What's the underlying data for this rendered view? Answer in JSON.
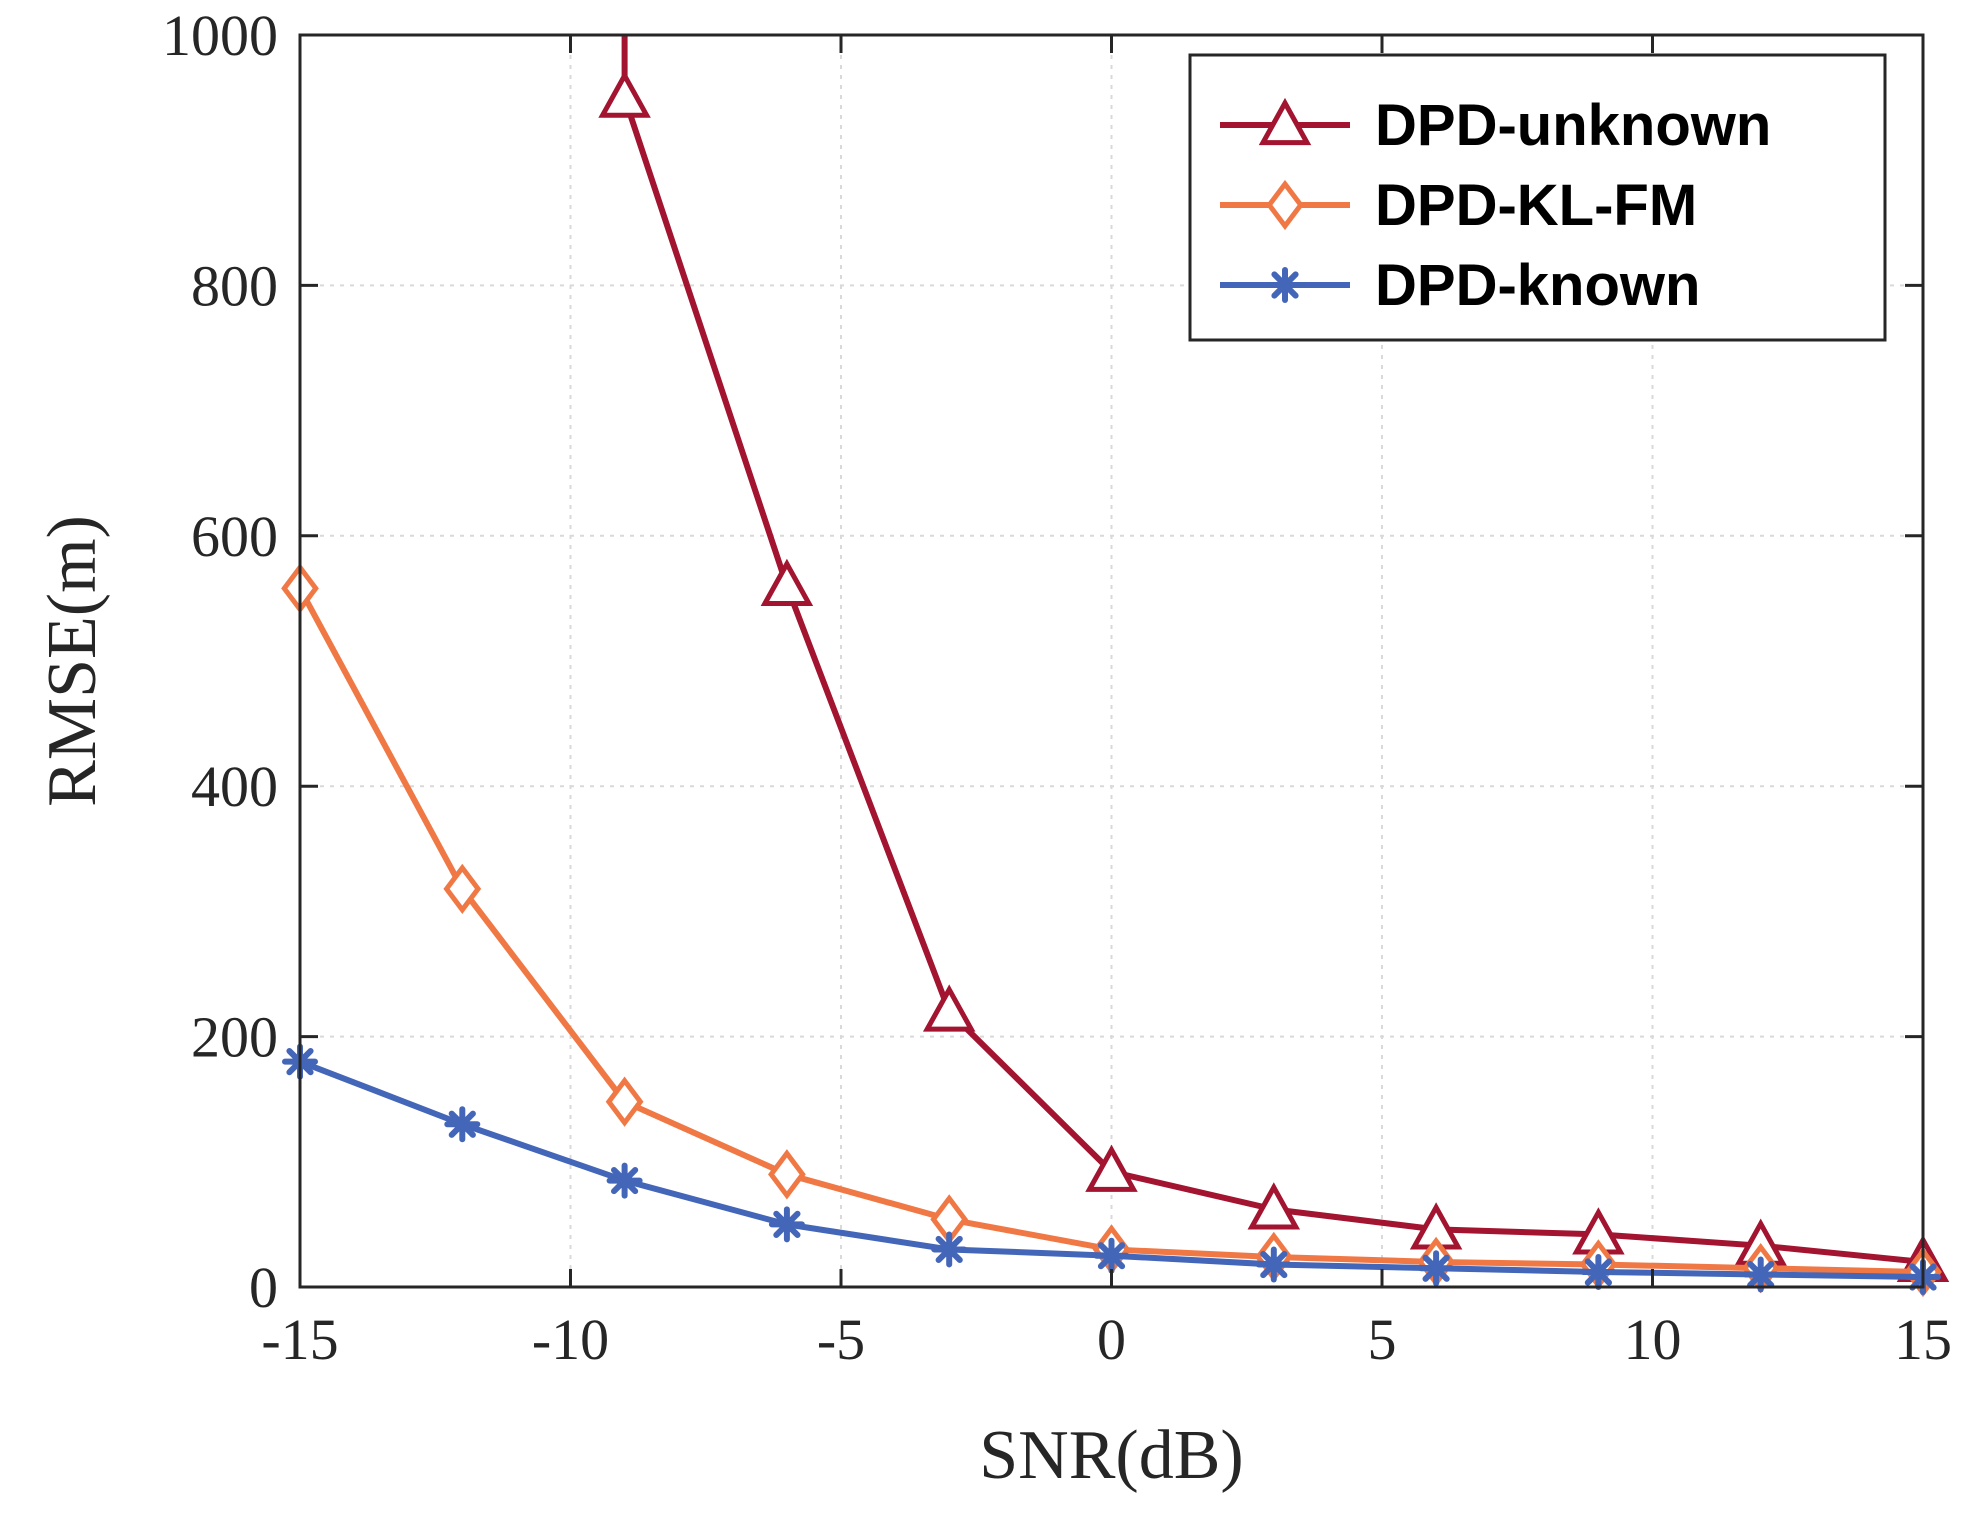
{
  "chart_data": {
    "type": "line",
    "title": "",
    "xlabel": "SNR(dB)",
    "ylabel": "RMSE(m)",
    "xlim": [
      -15,
      15
    ],
    "ylim": [
      0,
      1000
    ],
    "x_ticks": [
      -15,
      -10,
      -5,
      0,
      5,
      10,
      15
    ],
    "y_ticks": [
      0,
      200,
      400,
      600,
      800,
      1000
    ],
    "grid": true,
    "legend_position": "top-right",
    "x": [
      -15,
      -12,
      -9,
      -6,
      -3,
      0,
      3,
      6,
      9,
      12,
      15
    ],
    "series": [
      {
        "name": "DPD-unknown",
        "color": "#a2142f",
        "marker": "triangle",
        "values": [
          null,
          null,
          950,
          560,
          220,
          92,
          62,
          46,
          42,
          33,
          20
        ],
        "clipped_start": {
          "x": -9,
          "y": 1000
        }
      },
      {
        "name": "DPD-KL-FM",
        "color": "#f07845",
        "marker": "diamond",
        "values": [
          558,
          318,
          148,
          90,
          54,
          30,
          24,
          20,
          18,
          15,
          12
        ]
      },
      {
        "name": "DPD-known",
        "color": "#4466b8",
        "marker": "star",
        "values": [
          180,
          130,
          85,
          50,
          30,
          25,
          18,
          15,
          12,
          10,
          8
        ]
      }
    ]
  }
}
